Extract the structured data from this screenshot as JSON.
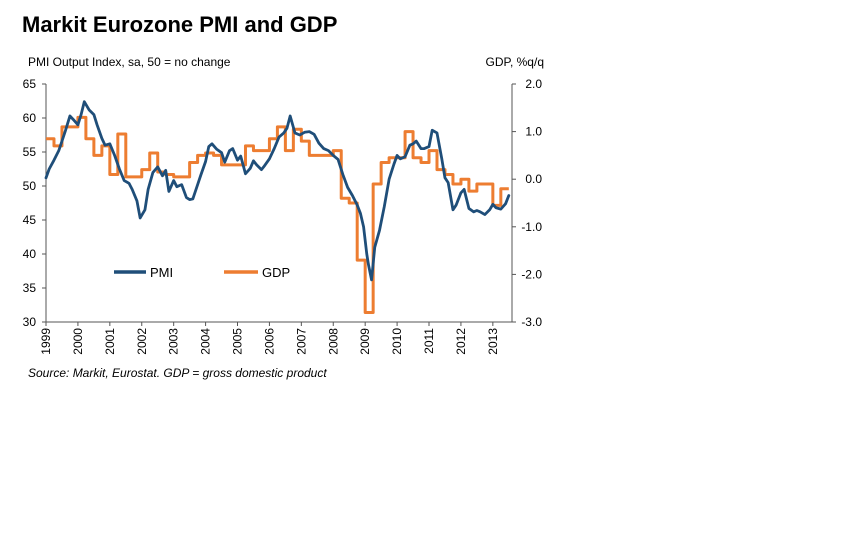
{
  "colors": {
    "pmi": "#1f4e79",
    "gdp": "#ed7d31",
    "axis": "#555555"
  },
  "chart_data": {
    "type": "line",
    "title": "Markit Eurozone PMI and GDP",
    "left_axis_label": "PMI Output Index, sa, 50 = no change",
    "right_axis_label": "GDP, %q/q",
    "source": "Source: Markit, Eurostat. GDP = gross domestic product",
    "legend": {
      "pmi": "PMI",
      "gdp": "GDP"
    },
    "y_left": {
      "min": 30,
      "max": 65,
      "ticks": [
        30,
        35,
        40,
        45,
        50,
        55,
        60,
        65
      ]
    },
    "y_right": {
      "min": -3.0,
      "max": 2.0,
      "ticks": [
        -3.0,
        -2.0,
        -1.0,
        0.0,
        1.0,
        2.0
      ],
      "tick_labels": [
        "-3.0",
        "-2.0",
        "-1.0",
        "0.0",
        "1.0",
        "2.0"
      ]
    },
    "x": {
      "min": 1999.0,
      "max": 2013.6,
      "ticks": [
        1999,
        2000,
        2001,
        2002,
        2003,
        2004,
        2005,
        2006,
        2007,
        2008,
        2009,
        2010,
        2011,
        2012,
        2013
      ],
      "tick_labels": [
        "1999",
        "2000",
        "2001",
        "2002",
        "2003",
        "2004",
        "2005",
        "2006",
        "2007",
        "2008",
        "2009",
        "2010",
        "2011",
        "2012",
        "2013"
      ]
    },
    "series": [
      {
        "name": "PMI",
        "axis": "left",
        "x": [
          1999.0,
          1999.1,
          1999.25,
          1999.4,
          1999.6,
          1999.75,
          1999.85,
          2000.0,
          2000.1,
          2000.2,
          2000.35,
          2000.5,
          2000.6,
          2000.75,
          2000.85,
          2001.0,
          2001.15,
          2001.3,
          2001.45,
          2001.6,
          2001.7,
          2001.85,
          2001.95,
          2002.1,
          2002.2,
          2002.35,
          2002.5,
          2002.65,
          2002.75,
          2002.85,
          2003.0,
          2003.1,
          2003.25,
          2003.4,
          2003.5,
          2003.6,
          2003.75,
          2003.85,
          2004.0,
          2004.1,
          2004.2,
          2004.35,
          2004.5,
          2004.6,
          2004.75,
          2004.85,
          2005.0,
          2005.1,
          2005.25,
          2005.4,
          2005.5,
          2005.6,
          2005.75,
          2005.85,
          2006.0,
          2006.15,
          2006.3,
          2006.45,
          2006.55,
          2006.65,
          2006.8,
          2006.95,
          2007.1,
          2007.25,
          2007.4,
          2007.55,
          2007.7,
          2007.85,
          2008.0,
          2008.15,
          2008.3,
          2008.45,
          2008.6,
          2008.75,
          2008.85,
          2008.95,
          2009.05,
          2009.1,
          2009.2,
          2009.3,
          2009.45,
          2009.6,
          2009.75,
          2009.9,
          2010.0,
          2010.1,
          2010.25,
          2010.4,
          2010.5,
          2010.6,
          2010.75,
          2010.85,
          2011.0,
          2011.1,
          2011.25,
          2011.4,
          2011.5,
          2011.6,
          2011.75,
          2011.85,
          2012.0,
          2012.1,
          2012.25,
          2012.4,
          2012.5,
          2012.6,
          2012.75,
          2012.9,
          2013.0,
          2013.1,
          2013.25,
          2013.4,
          2013.5
        ],
        "values": [
          51.2,
          52.5,
          53.8,
          55.2,
          58.0,
          60.3,
          59.8,
          59.0,
          60.5,
          62.4,
          61.2,
          60.5,
          59.0,
          57.0,
          56.0,
          56.2,
          54.5,
          52.5,
          50.8,
          50.4,
          49.5,
          47.8,
          45.3,
          46.5,
          49.5,
          52.0,
          52.8,
          51.5,
          52.3,
          49.2,
          50.8,
          49.9,
          50.2,
          48.3,
          48.0,
          48.1,
          50.2,
          51.6,
          53.6,
          55.8,
          56.2,
          55.4,
          54.9,
          53.5,
          55.2,
          55.5,
          53.8,
          54.4,
          51.8,
          52.6,
          53.7,
          53.1,
          52.4,
          53.0,
          54.0,
          55.5,
          57.2,
          57.8,
          58.5,
          60.3,
          57.8,
          57.5,
          57.9,
          58.0,
          57.6,
          56.3,
          55.5,
          55.2,
          54.5,
          53.9,
          51.7,
          49.8,
          48.6,
          47.2,
          46.0,
          44.0,
          40.0,
          38.5,
          36.2,
          41.0,
          43.5,
          47.0,
          51.0,
          53.2,
          54.5,
          54.0,
          54.3,
          56.0,
          56.2,
          56.6,
          55.5,
          55.5,
          55.8,
          58.2,
          57.8,
          54.0,
          51.2,
          50.5,
          46.5,
          47.2,
          49.0,
          49.5,
          46.7,
          46.2,
          46.4,
          46.2,
          45.8,
          46.5,
          47.3,
          46.8,
          46.6,
          47.4,
          48.6
        ]
      },
      {
        "name": "GDP",
        "axis": "right",
        "x": [
          1999.0,
          1999.25,
          1999.5,
          1999.75,
          2000.0,
          2000.25,
          2000.5,
          2000.75,
          2001.0,
          2001.25,
          2001.5,
          2001.75,
          2002.0,
          2002.25,
          2002.5,
          2002.75,
          2003.0,
          2003.25,
          2003.5,
          2003.75,
          2004.0,
          2004.25,
          2004.5,
          2004.75,
          2005.0,
          2005.25,
          2005.5,
          2005.75,
          2006.0,
          2006.25,
          2006.5,
          2006.75,
          2007.0,
          2007.25,
          2007.5,
          2007.75,
          2008.0,
          2008.25,
          2008.5,
          2008.75,
          2009.0,
          2009.25,
          2009.5,
          2009.75,
          2010.0,
          2010.25,
          2010.5,
          2010.75,
          2011.0,
          2011.25,
          2011.5,
          2011.75,
          2012.0,
          2012.25,
          2012.5,
          2012.75,
          2013.0,
          2013.25
        ],
        "values": [
          0.85,
          0.7,
          1.1,
          1.1,
          1.3,
          0.85,
          0.5,
          0.7,
          0.1,
          0.95,
          0.05,
          0.05,
          0.2,
          0.55,
          0.15,
          0.1,
          0.05,
          0.05,
          0.35,
          0.5,
          0.55,
          0.5,
          0.3,
          0.3,
          0.3,
          0.7,
          0.6,
          0.6,
          0.85,
          1.1,
          0.6,
          1.05,
          0.8,
          0.5,
          0.5,
          0.5,
          0.6,
          -0.4,
          -0.5,
          -1.7,
          -2.8,
          -0.1,
          0.35,
          0.45,
          0.45,
          1.0,
          0.45,
          0.35,
          0.6,
          0.2,
          0.1,
          -0.1,
          0.0,
          -0.25,
          -0.1,
          -0.1,
          -0.55,
          -0.2
        ]
      }
    ]
  }
}
